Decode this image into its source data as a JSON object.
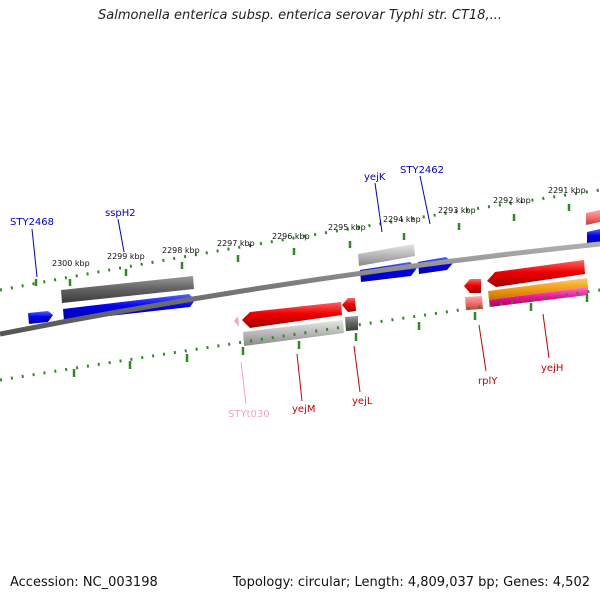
{
  "title": "Salmonella enterica subsp. enterica serovar Typhi str. CT18,...",
  "footer": {
    "accession": "Accession: NC_003198",
    "topology": "Topology: circular; Length: 4,809,037 bp; Genes: 4,502"
  },
  "scale_labels": [
    "2300 kbp",
    "2299 kbp",
    "2298 kbp",
    "2297 kbp",
    "2296 kbp",
    "2295 kbp",
    "2294 kbp",
    "2293 kbp",
    "2292 kbp",
    "2291 kbp"
  ],
  "gene_labels": [
    {
      "name": "STY2468",
      "color": "#0000cc"
    },
    {
      "name": "sspH2",
      "color": "#0000cc"
    },
    {
      "name": "yejK",
      "color": "#0000cc"
    },
    {
      "name": "STY2462",
      "color": "#0000cc"
    },
    {
      "name": "STYt030",
      "color": "#f5a3c7"
    },
    {
      "name": "yejM",
      "color": "#cc0000"
    },
    {
      "name": "yejL",
      "color": "#cc0000"
    },
    {
      "name": "rplY",
      "color": "#cc0000"
    },
    {
      "name": "yejH",
      "color": "#cc0000"
    }
  ],
  "colors": {
    "tick": "#2e8b22",
    "backbone": "#808080",
    "forward_cds": "#0000ee",
    "reverse_cds": "#ee0000",
    "gray_feature": "#666666",
    "light_gray_feature": "#b8b8b8",
    "trna": "#f5a3c7",
    "orange_feature": "#f39c12",
    "magenta_feature": "#ee1199"
  }
}
